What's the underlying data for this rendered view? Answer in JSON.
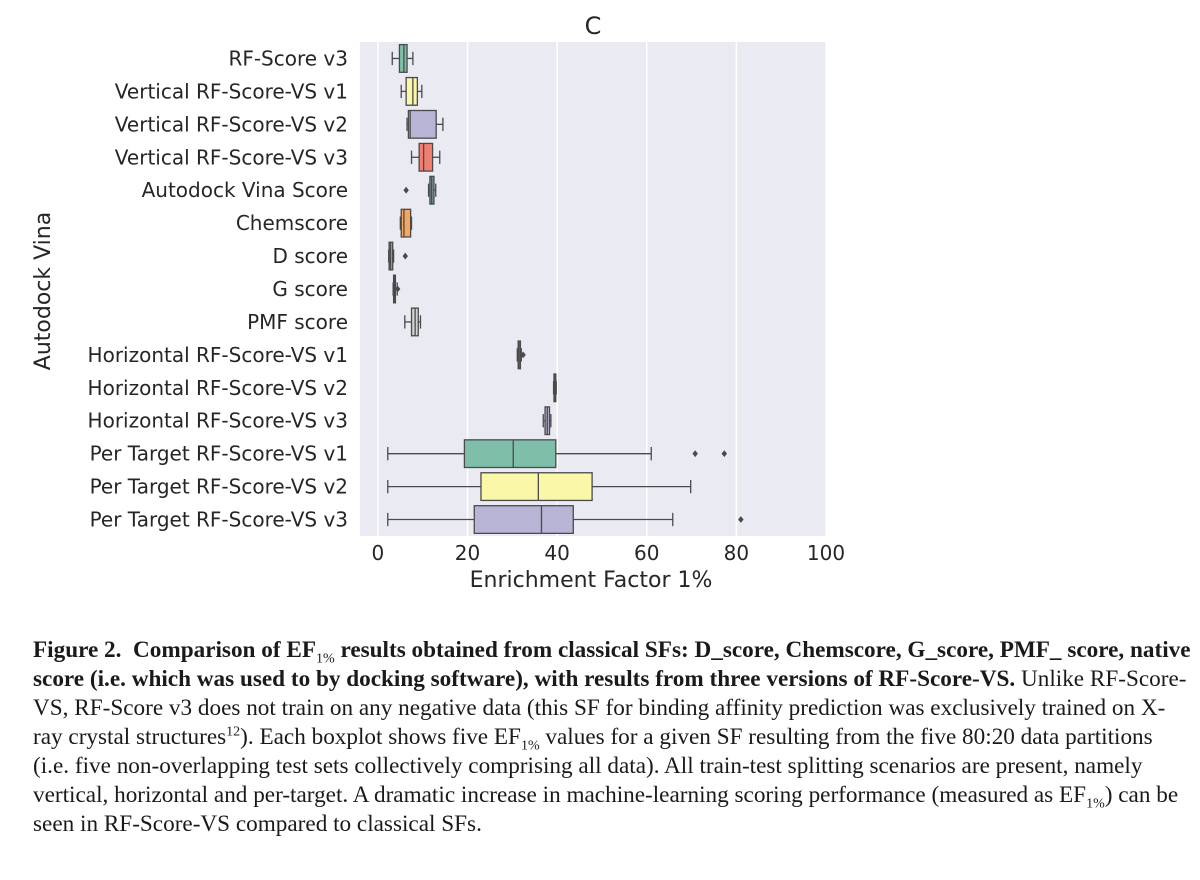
{
  "chart_data": {
    "type": "boxplot",
    "orientation": "horizontal",
    "title": "C",
    "xlabel": "Enrichment Factor 1%",
    "ylabel": "Autodock Vina",
    "xlim": [
      -4,
      100
    ],
    "xticks": [
      0,
      20,
      40,
      60,
      80,
      100
    ],
    "grid": "vertical",
    "background": "#eaeaf2",
    "categories": [
      "RF-Score v3",
      "Vertical RF-Score-VS v1",
      "Vertical RF-Score-VS v2",
      "Vertical RF-Score-VS v3",
      "Autodock Vina Score",
      "Chemscore",
      "D score",
      "G score",
      "PMF score",
      "Horizontal RF-Score-VS v1",
      "Horizontal RF-Score-VS v2",
      "Horizontal RF-Score-VS v3",
      "Per Target RF-Score-VS v1",
      "Per Target RF-Score-VS v2",
      "Per Target RF-Score-VS v3"
    ],
    "boxes": [
      {
        "color": "#7fbfa9",
        "whislo": 3.2,
        "q1": 4.8,
        "med": 5.8,
        "q3": 6.5,
        "whishi": 7.8,
        "fliers": []
      },
      {
        "color": "#fbf7a8",
        "whislo": 5.2,
        "q1": 6.3,
        "med": 7.8,
        "q3": 8.8,
        "whishi": 9.8,
        "fliers": []
      },
      {
        "color": "#b8b4d6",
        "whislo": 6.5,
        "q1": 6.8,
        "med": 7.2,
        "q3": 13.0,
        "whishi": 14.5,
        "fliers": []
      },
      {
        "color": "#f07f72",
        "whislo": 7.5,
        "q1": 9.2,
        "med": 10.2,
        "q3": 12.2,
        "whishi": 13.8,
        "fliers": []
      },
      {
        "color": "#7a9fb5",
        "whislo": 11.3,
        "q1": 11.6,
        "med": 12.0,
        "q3": 12.5,
        "whishi": 12.9,
        "fliers": [
          6.3
        ]
      },
      {
        "color": "#f5a761",
        "whislo": 5.0,
        "q1": 5.2,
        "med": 5.8,
        "q3": 7.3,
        "whishi": 7.5,
        "fliers": []
      },
      {
        "color": "#8db85a",
        "whislo": 2.4,
        "q1": 2.5,
        "med": 2.8,
        "q3": 3.3,
        "whishi": 3.5,
        "fliers": [
          6.1
        ]
      },
      {
        "color": "#f6c4d6",
        "whislo": 3.4,
        "q1": 3.5,
        "med": 3.7,
        "q3": 3.9,
        "whishi": 4.3,
        "fliers": [
          4.4
        ]
      },
      {
        "color": "#d3d3d3",
        "whislo": 6.0,
        "q1": 7.5,
        "med": 8.3,
        "q3": 9.0,
        "whishi": 9.5,
        "fliers": []
      },
      {
        "color": "#7fbfa9",
        "whislo": 31.1,
        "q1": 31.3,
        "med": 31.5,
        "q3": 31.8,
        "whishi": 32.0,
        "fliers": [
          32.4
        ]
      },
      {
        "color": "#fbf7a8",
        "whislo": 39.2,
        "q1": 39.3,
        "med": 39.5,
        "q3": 39.7,
        "whishi": 39.8,
        "fliers": []
      },
      {
        "color": "#b8b4d6",
        "whislo": 36.9,
        "q1": 37.3,
        "med": 37.8,
        "q3": 38.3,
        "whishi": 38.6,
        "fliers": []
      },
      {
        "color": "#7fbfa9",
        "whislo": 2.2,
        "q1": 19.3,
        "med": 30.2,
        "q3": 39.7,
        "whishi": 61.0,
        "fliers": [
          70.8,
          77.3
        ]
      },
      {
        "color": "#fbf7a8",
        "whislo": 2.2,
        "q1": 23.0,
        "med": 35.8,
        "q3": 47.8,
        "whishi": 69.8,
        "fliers": []
      },
      {
        "color": "#b8b4d6",
        "whislo": 2.2,
        "q1": 21.5,
        "med": 36.5,
        "q3": 43.6,
        "whishi": 65.8,
        "fliers": [
          81.0
        ]
      }
    ]
  },
  "caption": {
    "fig_label": "Figure 2.",
    "bold_a": "Comparison of EF",
    "sub_1": "1%",
    "bold_b": " results obtained from classical SFs: D_score, Chemscore, G_score, PMF_ score, native score (i.e. which was used to by docking software), with results from three versions of RF-Score-VS.",
    "text_a": " Unlike RF-Score-VS, RF-Score v3 does not train on any negative data (this SF for binding affinity prediction was exclusively trained on X-ray crystal structures",
    "sup_ref": "12",
    "text_b": "). Each boxplot shows five EF",
    "sub_2": "1%",
    "text_c": " values for a given SF resulting from the five 80:20 data partitions (i.e. five non-overlapping test sets collectively comprising all data). All train-test splitting scenarios are present, namely vertical, horizontal and per-target. A dramatic increase in machine-learning scoring performance (measured as EF",
    "sub_3": "1%",
    "text_d": ") can be seen in RF-Score-VS compared to classical SFs."
  }
}
